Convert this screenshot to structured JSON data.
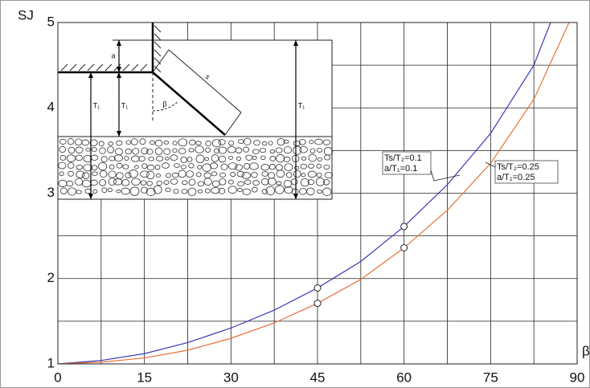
{
  "chart_data": {
    "type": "line",
    "x_label": "β",
    "y_label": "SJ",
    "xlim": [
      0,
      90
    ],
    "ylim": [
      1,
      5
    ],
    "xticks": [
      0,
      15,
      30,
      45,
      60,
      75,
      90
    ],
    "yticks": [
      1,
      2,
      3,
      4,
      5
    ],
    "grid": true,
    "grid_minor_halves": true,
    "series": [
      {
        "name": "Ts/T₂=0.1",
        "name2": "a/T₁=0.1",
        "color": "#3a3ab8",
        "x": [
          0,
          7.5,
          15,
          22.5,
          30,
          37.5,
          45,
          52.5,
          60,
          67.5,
          75,
          82.5,
          85.4
        ],
        "values": [
          1.0,
          1.04,
          1.12,
          1.25,
          1.42,
          1.63,
          1.89,
          2.2,
          2.61,
          3.1,
          3.7,
          4.5,
          5.0
        ],
        "markers": {
          "x": [
            45,
            60
          ],
          "values": [
            1.89,
            2.61
          ]
        }
      },
      {
        "name": "Ts/T₂=0.25",
        "name2": "a/T₁=0.25",
        "color": "#e8703a",
        "x": [
          0,
          7.5,
          15,
          22.5,
          30,
          37.5,
          45,
          52.5,
          60,
          67.5,
          75,
          82.5,
          88.6
        ],
        "values": [
          1.0,
          1.02,
          1.07,
          1.16,
          1.3,
          1.48,
          1.71,
          1.99,
          2.36,
          2.8,
          3.35,
          4.1,
          5.0
        ],
        "markers": {
          "x": [
            45,
            60
          ],
          "values": [
            1.71,
            2.36
          ]
        }
      }
    ],
    "inset_labels": [
      "a",
      "T₁",
      "T₁",
      "s",
      "β",
      "T₁"
    ]
  }
}
